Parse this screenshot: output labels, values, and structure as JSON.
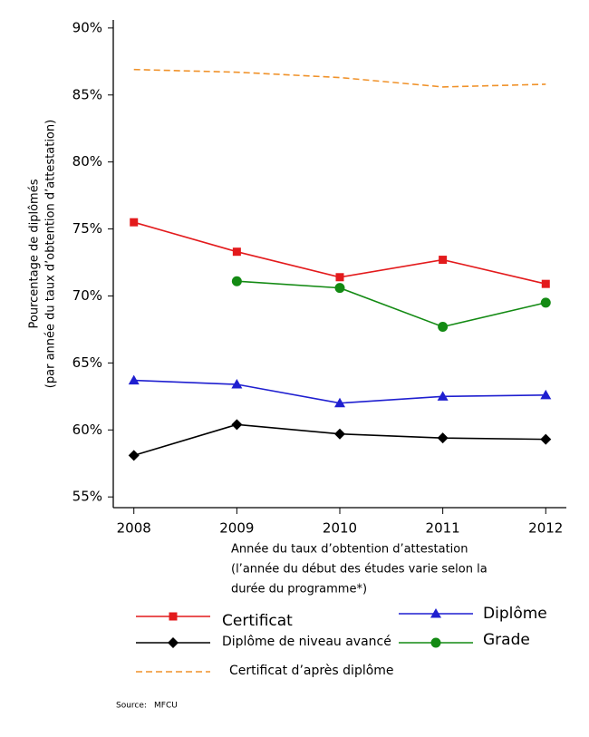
{
  "chart_data": {
    "type": "line",
    "y_label": [
      "Pourcentage de diplômés",
      "(par année du taux d’obtention d’attestation)"
    ],
    "x_label": [
      "Année du taux d’obtention d’attestation",
      "(l’année du début des études varie selon la",
      "durée du programme*)"
    ],
    "x": [
      2008,
      2009,
      2010,
      2011,
      2012
    ],
    "xlim": [
      2007.8,
      2012.2
    ],
    "xticks": [
      2008,
      2009,
      2010,
      2011,
      2012
    ],
    "ylim": [
      54.2,
      90.6
    ],
    "yticks": [
      {
        "value": 55,
        "label": "55%"
      },
      {
        "value": 60,
        "label": "60%"
      },
      {
        "value": 65,
        "label": "65%"
      },
      {
        "value": 70,
        "label": "70%"
      },
      {
        "value": 75,
        "label": "75%"
      },
      {
        "value": 80,
        "label": "80%"
      },
      {
        "value": 85,
        "label": "85%"
      },
      {
        "value": 90,
        "label": "90%"
      }
    ],
    "series": [
      {
        "name": "Certificat",
        "color": "#e31a1c",
        "marker": "square",
        "dashed": false,
        "values": [
          75.5,
          73.3,
          71.4,
          72.7,
          70.9
        ]
      },
      {
        "name": "Diplôme",
        "color": "#1f1fd0",
        "marker": "triangle",
        "dashed": false,
        "values": [
          63.7,
          63.4,
          62.0,
          62.5,
          62.6
        ]
      },
      {
        "name": "Diplôme de niveau avancé",
        "color": "#000000",
        "marker": "diamond",
        "dashed": false,
        "values": [
          58.1,
          60.4,
          59.7,
          59.4,
          59.3
        ]
      },
      {
        "name": "Grade",
        "color": "#138a13",
        "marker": "circle",
        "dashed": false,
        "values": [
          null,
          71.1,
          70.6,
          67.7,
          69.5
        ]
      },
      {
        "name": "Certificat d’après diplôme",
        "color": "#f0922a",
        "marker": "none",
        "dashed": true,
        "values": [
          86.9,
          86.7,
          86.3,
          85.6,
          85.8
        ]
      }
    ],
    "source_label": "Source:",
    "source": "MFCU"
  }
}
